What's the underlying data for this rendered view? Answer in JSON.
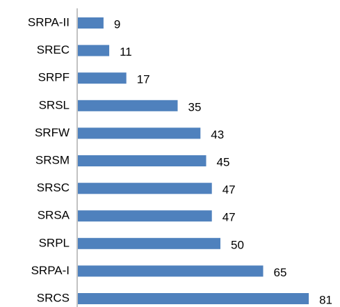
{
  "chart_data": {
    "type": "bar",
    "orientation": "horizontal",
    "categories": [
      "SRPA-II",
      "SREC",
      "SRPF",
      "SRSL",
      "SRFW",
      "SRSM",
      "SRSC",
      "SRSA",
      "SRPL",
      "SRPA-I",
      "SRCS"
    ],
    "values": [
      9,
      11,
      17,
      35,
      43,
      45,
      47,
      47,
      50,
      65,
      81
    ],
    "color": "#4f81bd",
    "xlim": [
      0,
      90
    ]
  }
}
